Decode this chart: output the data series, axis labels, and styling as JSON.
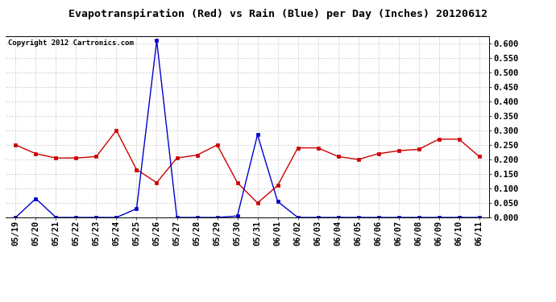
{
  "title": "Evapotranspiration (Red) vs Rain (Blue) per Day (Inches) 20120612",
  "copyright": "Copyright 2012 Cartronics.com",
  "x_labels": [
    "05/19",
    "05/20",
    "05/21",
    "05/22",
    "05/23",
    "05/24",
    "05/25",
    "05/26",
    "05/27",
    "05/28",
    "05/29",
    "05/30",
    "05/31",
    "06/01",
    "06/02",
    "06/03",
    "06/04",
    "06/05",
    "06/06",
    "06/07",
    "06/08",
    "06/09",
    "06/10",
    "06/11"
  ],
  "red_data": [
    0.25,
    0.22,
    0.205,
    0.205,
    0.21,
    0.3,
    0.165,
    0.12,
    0.205,
    0.215,
    0.25,
    0.12,
    0.05,
    0.11,
    0.24,
    0.24,
    0.21,
    0.2,
    0.22,
    0.23,
    0.235,
    0.27,
    0.27,
    0.21
  ],
  "blue_data": [
    0.0,
    0.065,
    0.0,
    0.0,
    0.0,
    0.0,
    0.03,
    0.61,
    0.0,
    0.0,
    0.0,
    0.005,
    0.285,
    0.055,
    0.0,
    0.0,
    0.0,
    0.0,
    0.0,
    0.0,
    0.0,
    0.0,
    0.0,
    0.0
  ],
  "y_min": 0.0,
  "y_max": 0.625,
  "y_ticks": [
    0.0,
    0.05,
    0.1,
    0.15,
    0.2,
    0.25,
    0.3,
    0.35,
    0.4,
    0.45,
    0.5,
    0.55,
    0.6
  ],
  "red_color": "#cc0000",
  "blue_color": "#0000cc",
  "background_color": "#ffffff",
  "grid_color": "#cccccc",
  "title_fontsize": 9.5,
  "copyright_fontsize": 6.5,
  "tick_fontsize": 7.5,
  "ytick_fontsize": 7.5
}
